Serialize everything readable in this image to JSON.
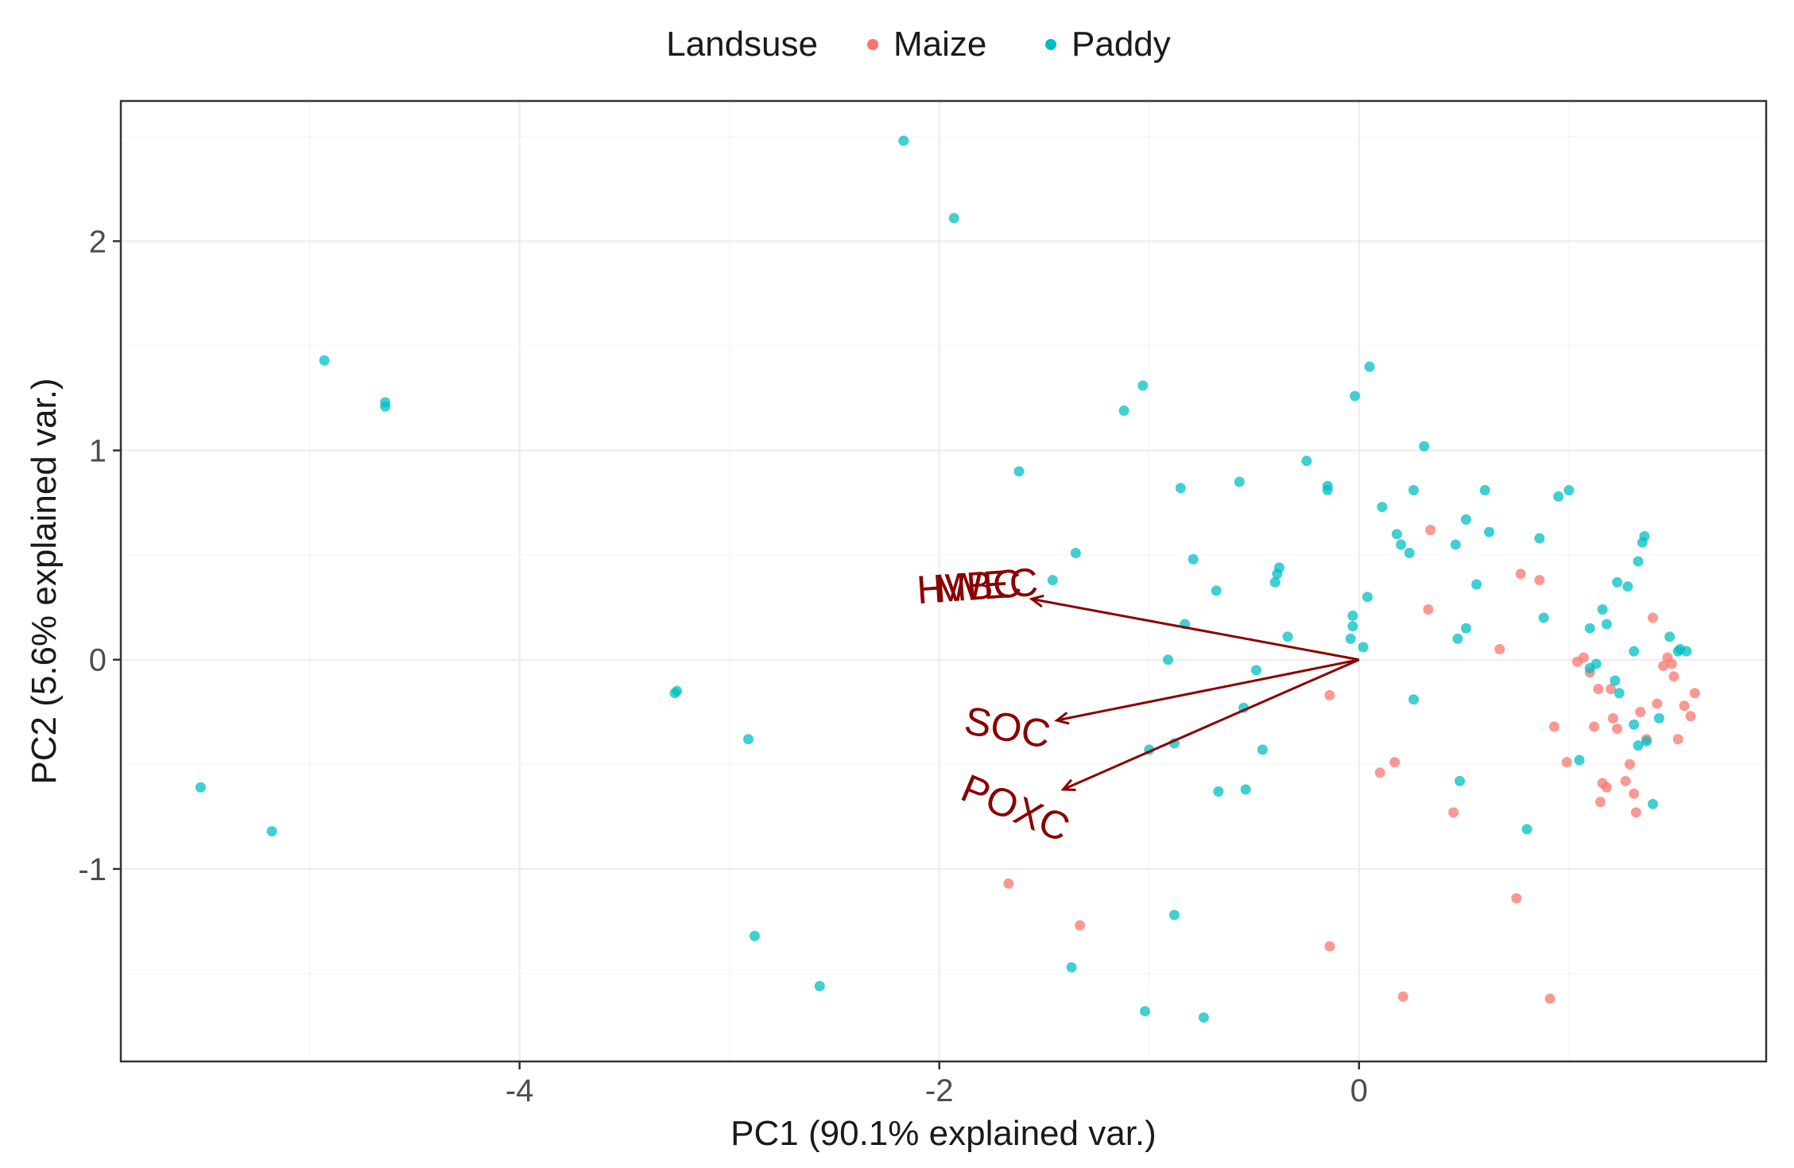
{
  "chart_data": {
    "type": "scatter",
    "title": "",
    "xlabel": "PC1 (90.1% explained var.)",
    "ylabel": "PC2 (5.6% explained var.)",
    "xlim": [
      -5.9,
      1.94
    ],
    "ylim": [
      -1.92,
      2.67
    ],
    "xticks": [
      -4,
      -2,
      0
    ],
    "xtick_labels": [
      "-4",
      "-2",
      "0"
    ],
    "yticks": [
      -1,
      0,
      1,
      2
    ],
    "ytick_labels": [
      "-1",
      "0",
      "1",
      "2"
    ],
    "grid": true,
    "legend": {
      "title": "Landsuse",
      "position": "top",
      "entries": [
        "Maize",
        "Paddy"
      ]
    },
    "colors": {
      "Maize": "#f8766d",
      "Paddy": "#00bfc4",
      "arrow": "#8b0000"
    },
    "series": [
      {
        "name": "Maize",
        "points": [
          [
            -1.67,
            -1.07
          ],
          [
            -1.33,
            -1.27
          ],
          [
            -0.14,
            -1.37
          ],
          [
            -0.14,
            -0.17
          ],
          [
            0.1,
            -0.54
          ],
          [
            0.17,
            -0.49
          ],
          [
            0.21,
            -1.61
          ],
          [
            0.34,
            0.62
          ],
          [
            0.33,
            0.24
          ],
          [
            0.45,
            -0.73
          ],
          [
            0.67,
            0.05
          ],
          [
            0.77,
            0.41
          ],
          [
            0.86,
            0.38
          ],
          [
            0.75,
            -1.14
          ],
          [
            0.91,
            -1.62
          ],
          [
            0.93,
            -0.32
          ],
          [
            0.99,
            -0.49
          ],
          [
            1.04,
            -0.01
          ],
          [
            1.07,
            0.01
          ],
          [
            1.1,
            -0.06
          ],
          [
            1.14,
            -0.14
          ],
          [
            1.2,
            -0.14
          ],
          [
            1.16,
            -0.59
          ],
          [
            1.18,
            -0.61
          ],
          [
            1.15,
            -0.68
          ],
          [
            1.21,
            -0.28
          ],
          [
            1.23,
            -0.33
          ],
          [
            1.27,
            -0.58
          ],
          [
            1.29,
            -0.5
          ],
          [
            1.31,
            -0.64
          ],
          [
            1.34,
            -0.25
          ],
          [
            1.37,
            -0.38
          ],
          [
            1.4,
            0.2
          ],
          [
            1.42,
            -0.21
          ],
          [
            1.45,
            -0.03
          ],
          [
            1.47,
            0.01
          ],
          [
            1.49,
            -0.02
          ],
          [
            1.5,
            -0.08
          ],
          [
            1.52,
            -0.38
          ],
          [
            1.55,
            -0.22
          ],
          [
            1.58,
            -0.27
          ],
          [
            1.6,
            -0.16
          ],
          [
            1.32,
            -0.73
          ],
          [
            1.12,
            -0.32
          ]
        ]
      },
      {
        "name": "Paddy",
        "points": [
          [
            -5.52,
            -0.61
          ],
          [
            -5.18,
            -0.82
          ],
          [
            -4.93,
            1.43
          ],
          [
            -4.64,
            1.21
          ],
          [
            -4.64,
            1.23
          ],
          [
            -3.26,
            -0.16
          ],
          [
            -3.25,
            -0.15
          ],
          [
            -2.91,
            -0.38
          ],
          [
            -2.88,
            -1.32
          ],
          [
            -2.57,
            -1.56
          ],
          [
            -2.17,
            2.48
          ],
          [
            -1.93,
            2.11
          ],
          [
            -1.62,
            0.9
          ],
          [
            -1.46,
            0.38
          ],
          [
            -1.37,
            -1.47
          ],
          [
            -1.35,
            0.51
          ],
          [
            -1.12,
            1.19
          ],
          [
            -1.03,
            1.31
          ],
          [
            -1.02,
            -1.68
          ],
          [
            -1.0,
            -0.43
          ],
          [
            -0.91,
            0.0
          ],
          [
            -0.88,
            -0.4
          ],
          [
            -0.88,
            -1.22
          ],
          [
            -0.85,
            0.82
          ],
          [
            -0.83,
            0.17
          ],
          [
            -0.79,
            0.48
          ],
          [
            -0.74,
            -1.71
          ],
          [
            -0.68,
            0.33
          ],
          [
            -0.67,
            -0.63
          ],
          [
            -0.57,
            0.85
          ],
          [
            -0.55,
            -0.23
          ],
          [
            -0.54,
            -0.62
          ],
          [
            -0.49,
            -0.05
          ],
          [
            -0.46,
            -0.43
          ],
          [
            -0.4,
            0.37
          ],
          [
            -0.39,
            0.41
          ],
          [
            -0.38,
            0.44
          ],
          [
            -0.34,
            0.11
          ],
          [
            -0.25,
            0.95
          ],
          [
            -0.15,
            0.83
          ],
          [
            -0.15,
            0.81
          ],
          [
            -0.04,
            0.1
          ],
          [
            -0.03,
            0.16
          ],
          [
            -0.03,
            0.21
          ],
          [
            -0.02,
            1.26
          ],
          [
            0.02,
            0.06
          ],
          [
            0.04,
            0.3
          ],
          [
            0.05,
            1.4
          ],
          [
            0.11,
            0.73
          ],
          [
            0.18,
            0.6
          ],
          [
            0.2,
            0.55
          ],
          [
            0.24,
            0.51
          ],
          [
            0.26,
            0.81
          ],
          [
            0.26,
            -0.19
          ],
          [
            0.31,
            1.02
          ],
          [
            0.46,
            0.55
          ],
          [
            0.48,
            -0.58
          ],
          [
            0.47,
            0.1
          ],
          [
            0.51,
            0.15
          ],
          [
            0.51,
            0.67
          ],
          [
            0.56,
            0.36
          ],
          [
            0.6,
            0.81
          ],
          [
            0.62,
            0.61
          ],
          [
            0.86,
            0.58
          ],
          [
            0.8,
            -0.81
          ],
          [
            0.88,
            0.2
          ],
          [
            0.95,
            0.78
          ],
          [
            1.0,
            0.81
          ],
          [
            1.05,
            -0.48
          ],
          [
            1.1,
            0.15
          ],
          [
            1.1,
            -0.04
          ],
          [
            1.13,
            -0.02
          ],
          [
            1.16,
            0.24
          ],
          [
            1.18,
            0.17
          ],
          [
            1.22,
            -0.1
          ],
          [
            1.23,
            0.37
          ],
          [
            1.24,
            -0.16
          ],
          [
            1.28,
            0.35
          ],
          [
            1.31,
            0.04
          ],
          [
            1.33,
            0.47
          ],
          [
            1.35,
            0.56
          ],
          [
            1.36,
            0.59
          ],
          [
            1.31,
            -0.31
          ],
          [
            1.33,
            -0.41
          ],
          [
            1.37,
            -0.39
          ],
          [
            1.4,
            -0.69
          ],
          [
            1.43,
            -0.28
          ],
          [
            1.48,
            0.11
          ],
          [
            1.52,
            0.04
          ],
          [
            1.53,
            0.05
          ],
          [
            1.56,
            0.04
          ]
        ]
      }
    ],
    "loadings": [
      {
        "label": "HWEC",
        "x": -1.56,
        "y": 0.29,
        "angle": 4
      },
      {
        "label": "MBC",
        "x": -1.56,
        "y": 0.29,
        "angle": 4
      },
      {
        "label": "SOC",
        "x": -1.44,
        "y": -0.29,
        "angle": -10
      },
      {
        "label": "POXC",
        "x": -1.41,
        "y": -0.62,
        "angle": -23
      }
    ]
  }
}
